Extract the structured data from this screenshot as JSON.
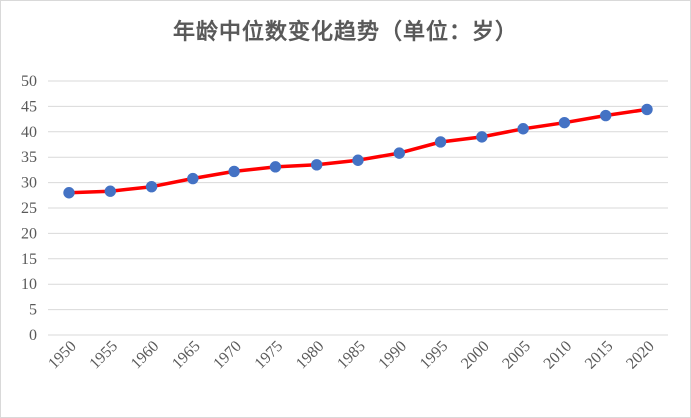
{
  "chart_data": {
    "type": "line",
    "title": "年龄中位数变化趋势（单位：岁）",
    "xlabel": "",
    "ylabel": "",
    "x": [
      "1950",
      "1955",
      "1960",
      "1965",
      "1970",
      "1975",
      "1980",
      "1985",
      "1990",
      "1995",
      "2000",
      "2005",
      "2010",
      "2015",
      "2020"
    ],
    "series": [
      {
        "values": [
          28.0,
          28.3,
          29.2,
          30.8,
          32.2,
          33.1,
          33.5,
          34.4,
          35.8,
          38.0,
          39.0,
          40.6,
          41.8,
          43.2,
          44.4
        ]
      }
    ],
    "ylim": [
      0,
      50
    ],
    "yticks": [
      "0",
      "5",
      "10",
      "15",
      "20",
      "25",
      "30",
      "35",
      "40",
      "45",
      "50"
    ],
    "grid": true,
    "legend": "none",
    "colors": {
      "line": "#ff0000",
      "marker": "#4472c4",
      "grid": "#d9d9d9",
      "text": "#595959"
    }
  }
}
